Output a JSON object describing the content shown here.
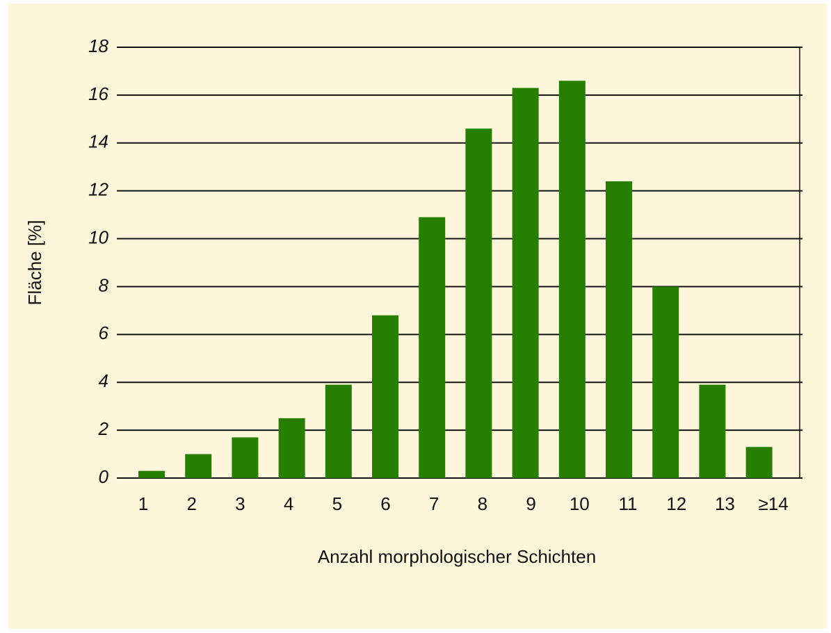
{
  "chart_data": {
    "type": "bar",
    "categories": [
      "1",
      "2",
      "3",
      "4",
      "5",
      "6",
      "7",
      "8",
      "9",
      "10",
      "11",
      "12",
      "13",
      "≥14"
    ],
    "values": [
      0.3,
      1.0,
      1.7,
      2.5,
      3.9,
      6.8,
      10.9,
      14.6,
      16.3,
      16.6,
      12.4,
      8.0,
      3.9,
      1.3
    ],
    "color": "#267f00",
    "x_label": "Anzahl morphologischer Schichten",
    "y_label": "Fläche [%]",
    "ylim": [
      0,
      18
    ],
    "yticks": [
      0,
      2,
      4,
      6,
      8,
      10,
      12,
      14,
      16,
      18
    ],
    "grid": true
  }
}
